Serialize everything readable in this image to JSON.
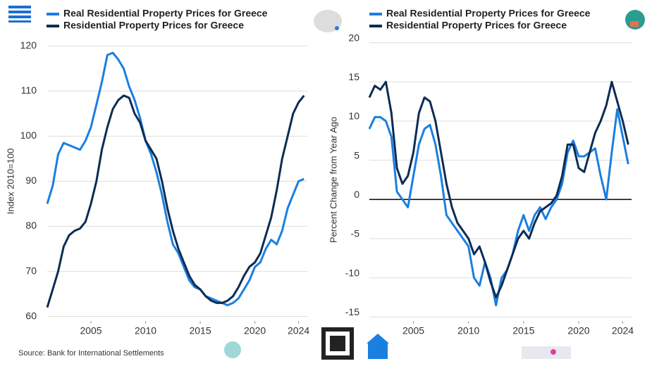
{
  "chart_data": [
    {
      "type": "line",
      "ylabel": "Index 2010=100",
      "x": [
        2001,
        2001.5,
        2002,
        2002.5,
        2003,
        2003.5,
        2004,
        2004.5,
        2005,
        2005.5,
        2006,
        2006.5,
        2007,
        2007.5,
        2008,
        2008.5,
        2009,
        2009.5,
        2010,
        2010.5,
        2011,
        2011.5,
        2012,
        2012.5,
        2013,
        2013.5,
        2014,
        2014.5,
        2015,
        2015.5,
        2016,
        2016.5,
        2017,
        2017.5,
        2018,
        2018.5,
        2019,
        2019.5,
        2020,
        2020.5,
        2021,
        2021.5,
        2022,
        2022.5,
        2023,
        2023.5,
        2024,
        2024.5
      ],
      "series": [
        {
          "name": "Real Residential Property Prices for Greece",
          "color": "#1a7fe0",
          "values": [
            85,
            89,
            96,
            98.5,
            98,
            97.5,
            97,
            99,
            102,
            107,
            112,
            118,
            118.5,
            117,
            115,
            111,
            108,
            104,
            99,
            96,
            92,
            87,
            81,
            76,
            74,
            71,
            68,
            66.5,
            66,
            64.5,
            64,
            63.5,
            63,
            62.5,
            63,
            64,
            66,
            68,
            71,
            72,
            75,
            77,
            76,
            79,
            84,
            87,
            90,
            90.5
          ]
        },
        {
          "name": "Residential Property Prices for Greece",
          "color": "#0d2c54",
          "values": [
            62,
            66,
            70,
            75.5,
            78,
            79,
            79.5,
            81,
            85,
            90,
            97,
            102,
            106,
            108,
            109,
            108.5,
            105,
            103,
            99,
            97,
            95,
            90,
            84,
            79,
            75,
            72,
            69,
            67,
            66,
            64.5,
            63.5,
            63,
            63,
            63.5,
            64.5,
            66.5,
            69,
            71,
            72,
            74,
            78,
            82,
            88,
            95,
            100,
            105,
            107.5,
            109
          ]
        }
      ],
      "xlim": [
        2001,
        2024.8
      ],
      "xticks": [
        2005,
        2010,
        2015,
        2020,
        2024
      ],
      "ylim": [
        59,
        121
      ],
      "yticks": [
        60,
        70,
        80,
        90,
        100,
        110,
        120
      ],
      "grid": true
    },
    {
      "type": "line",
      "ylabel": "Percent Change from Year Ago",
      "x": [
        2001,
        2001.5,
        2002,
        2002.5,
        2003,
        2003.5,
        2004,
        2004.5,
        2005,
        2005.5,
        2006,
        2006.5,
        2007,
        2007.5,
        2008,
        2008.5,
        2009,
        2009.5,
        2010,
        2010.5,
        2011,
        2011.5,
        2012,
        2012.5,
        2013,
        2013.5,
        2014,
        2014.5,
        2015,
        2015.5,
        2016,
        2016.5,
        2017,
        2017.5,
        2018,
        2018.5,
        2019,
        2019.5,
        2020,
        2020.5,
        2021,
        2021.5,
        2022,
        2022.5,
        2023,
        2023.5,
        2024,
        2024.5
      ],
      "series": [
        {
          "name": "Real Residential Property Prices for Greece",
          "color": "#1a7fe0",
          "values": [
            9,
            10.5,
            10.5,
            10,
            8,
            1,
            0,
            -1,
            3,
            7,
            9,
            9.5,
            7,
            3,
            -2,
            -3,
            -4,
            -5,
            -6,
            -10,
            -11,
            -8,
            -10,
            -13.5,
            -10,
            -9,
            -7,
            -4,
            -2,
            -4,
            -2,
            -1,
            -2.5,
            -1,
            0,
            2,
            6,
            7.5,
            5.5,
            5.5,
            6,
            6.5,
            3,
            0,
            6,
            11.5,
            8,
            4.5
          ]
        },
        {
          "name": "Residential Property Prices for Greece",
          "color": "#0d2c54",
          "values": [
            13,
            14.5,
            14,
            15,
            11,
            4,
            2,
            3,
            6,
            11,
            13,
            12.5,
            10,
            6,
            2,
            -1,
            -3,
            -4,
            -5,
            -7,
            -6,
            -8,
            -10.5,
            -12.5,
            -11,
            -9,
            -7,
            -5,
            -4,
            -5,
            -3,
            -1.5,
            -1,
            -0.5,
            0.5,
            3,
            7,
            7,
            4,
            3.5,
            6,
            8.5,
            10,
            12,
            15,
            12.5,
            10,
            7
          ]
        }
      ],
      "xlim": [
        2001,
        2024.8
      ],
      "xticks": [
        2005,
        2010,
        2015,
        2020,
        2024
      ],
      "ylim": [
        -15.5,
        20.5
      ],
      "yticks": [
        20,
        15,
        10,
        5,
        0,
        -5,
        -10,
        -15
      ],
      "grid": true
    }
  ],
  "source": "Source: Bank for International Settlements"
}
